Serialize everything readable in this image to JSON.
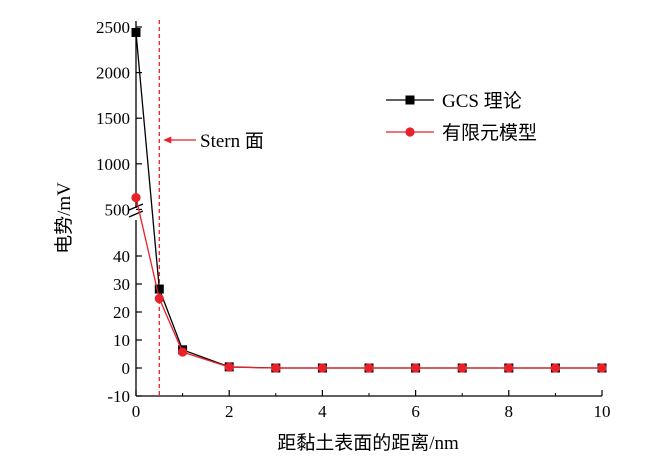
{
  "chart_data": {
    "type": "line",
    "title": "",
    "xlabel": "距黏土表面的距离/nm",
    "ylabel": "电势/mV",
    "xlim": [
      0,
      10
    ],
    "x_ticks": [
      0,
      2,
      4,
      6,
      8,
      10
    ],
    "y_axis_break": {
      "lower_range": [
        -10,
        45
      ],
      "upper_range": [
        450,
        2500
      ],
      "lower_ticks": [
        -10,
        0,
        10,
        20,
        30,
        40
      ],
      "upper_ticks": [
        500,
        1000,
        1500,
        2000,
        2500
      ]
    },
    "grid": false,
    "legend_position": "top-right",
    "series": [
      {
        "name": "GCS 理论",
        "marker": "square",
        "color": "#000000",
        "x": [
          0,
          0.5,
          1,
          2,
          3,
          4,
          5,
          6,
          7,
          8,
          9,
          10
        ],
        "y": [
          2440,
          28.2,
          6.5,
          0.4,
          0,
          0,
          0,
          0,
          0,
          0,
          0,
          0
        ]
      },
      {
        "name": "有限元模型",
        "marker": "circle",
        "color": "#e8212a",
        "x": [
          0,
          0.5,
          1,
          2,
          3,
          4,
          5,
          6,
          7,
          8,
          9,
          10
        ],
        "y": [
          630,
          24.8,
          5.7,
          0.3,
          0,
          0,
          0,
          0,
          0,
          0,
          0,
          0
        ]
      }
    ],
    "annotations": [
      {
        "text": "Stern 面",
        "x_line": 0.5,
        "line_color": "#e8212a",
        "line_style": "dashed"
      }
    ]
  }
}
